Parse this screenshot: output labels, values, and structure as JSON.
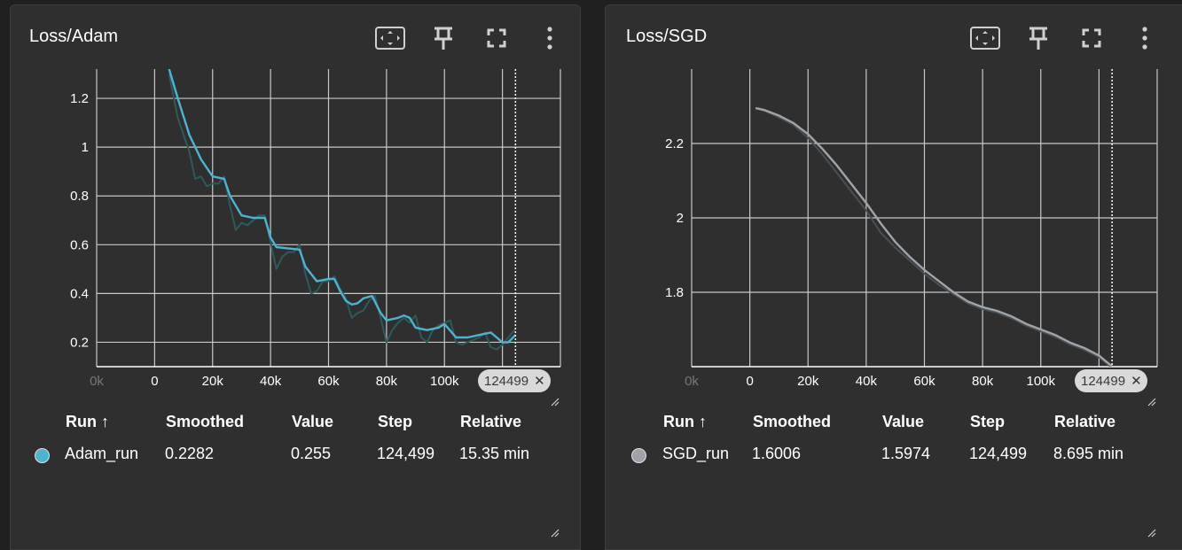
{
  "colors": {
    "adam_series": "#4fb2cf",
    "adam_raw": "#2e5a5c",
    "sgd_series": "#a0a4aa",
    "sgd_raw": "#4a5052",
    "grid": "#c8c8c8",
    "card_bg": "#2f2f2f"
  },
  "icons": [
    "fit-domain-icon",
    "pin-icon",
    "fullscreen-icon",
    "more-vert-icon"
  ],
  "panels": [
    {
      "title": "Loss/Adam",
      "step_chip": "124499",
      "legend": {
        "headers": {
          "run": "Run ↑",
          "smoothed": "Smoothed",
          "value": "Value",
          "step": "Step",
          "relative": "Relative"
        },
        "row": {
          "run": "Adam_run",
          "smoothed": "0.2282",
          "value": "0.255",
          "step": "124,499",
          "relative": "15.35 min"
        }
      }
    },
    {
      "title": "Loss/SGD",
      "step_chip": "124499",
      "legend": {
        "headers": {
          "run": "Run ↑",
          "smoothed": "Smoothed",
          "value": "Value",
          "step": "Step",
          "relative": "Relative"
        },
        "row": {
          "run": "SGD_run",
          "smoothed": "1.6006",
          "value": "1.5974",
          "step": "124,499",
          "relative": "8.695 min"
        }
      }
    }
  ],
  "chart_data": [
    {
      "type": "line",
      "title": "Loss/Adam",
      "xlabel": "",
      "ylabel": "",
      "x_ticks": [
        "0",
        "20k",
        "40k",
        "60k",
        "80k",
        "100k"
      ],
      "y_ticks": [
        "0.2",
        "0.4",
        "0.6",
        "0.8",
        "1",
        "1.2"
      ],
      "xlim": [
        -20000,
        140000
      ],
      "ylim": [
        0.1,
        1.32
      ],
      "grid": true,
      "cursor_step": 124499,
      "series": [
        {
          "name": "Adam_run",
          "x": [
            5000,
            8000,
            12000,
            16000,
            20000,
            24000,
            26000,
            30000,
            34000,
            38000,
            40000,
            42000,
            46000,
            50000,
            52000,
            56000,
            60000,
            62000,
            64000,
            66000,
            68000,
            70000,
            72000,
            75000,
            78000,
            80000,
            84000,
            86000,
            88000,
            90000,
            94000,
            98000,
            100000,
            104000,
            106000,
            108000,
            112000,
            116000,
            120000,
            122000,
            124499
          ],
          "y": [
            1.32,
            1.2,
            1.05,
            0.95,
            0.88,
            0.87,
            0.8,
            0.72,
            0.71,
            0.71,
            0.63,
            0.59,
            0.585,
            0.58,
            0.51,
            0.45,
            0.46,
            0.46,
            0.41,
            0.37,
            0.355,
            0.36,
            0.38,
            0.39,
            0.32,
            0.29,
            0.3,
            0.31,
            0.3,
            0.26,
            0.25,
            0.26,
            0.275,
            0.22,
            0.22,
            0.22,
            0.23,
            0.24,
            0.2,
            0.2,
            0.23
          ]
        },
        {
          "name": "Adam_run (raw)",
          "x": [
            5000,
            8000,
            12000,
            14000,
            16000,
            18000,
            20000,
            22000,
            24000,
            26000,
            28000,
            30000,
            32000,
            34000,
            36000,
            38000,
            40000,
            42000,
            44000,
            46000,
            48000,
            50000,
            52000,
            54000,
            56000,
            58000,
            60000,
            62000,
            64000,
            66000,
            68000,
            70000,
            72000,
            74000,
            76000,
            78000,
            80000,
            82000,
            84000,
            86000,
            88000,
            90000,
            92000,
            94000,
            96000,
            98000,
            100000,
            102000,
            104000,
            106000,
            108000,
            110000,
            112000,
            114000,
            116000,
            118000,
            120000,
            122000,
            124499
          ],
          "y": [
            1.3,
            1.12,
            0.98,
            0.87,
            0.88,
            0.84,
            0.85,
            0.85,
            0.88,
            0.76,
            0.66,
            0.69,
            0.68,
            0.7,
            0.72,
            0.72,
            0.61,
            0.5,
            0.55,
            0.57,
            0.57,
            0.6,
            0.48,
            0.4,
            0.41,
            0.45,
            0.45,
            0.47,
            0.42,
            0.38,
            0.3,
            0.32,
            0.33,
            0.37,
            0.39,
            0.3,
            0.2,
            0.25,
            0.28,
            0.3,
            0.28,
            0.31,
            0.22,
            0.2,
            0.25,
            0.27,
            0.28,
            0.29,
            0.2,
            0.19,
            0.2,
            0.21,
            0.22,
            0.24,
            0.18,
            0.17,
            0.19,
            0.22,
            0.255
          ]
        }
      ]
    },
    {
      "type": "line",
      "title": "Loss/SGD",
      "xlabel": "",
      "ylabel": "",
      "x_ticks": [
        "0",
        "20k",
        "40k",
        "60k",
        "80k",
        "100k"
      ],
      "y_ticks": [
        "1.8",
        "2",
        "2.2"
      ],
      "xlim": [
        -20000,
        140000
      ],
      "ylim": [
        1.6,
        2.4
      ],
      "grid": true,
      "cursor_step": 124499,
      "series": [
        {
          "name": "SGD_run",
          "x": [
            2000,
            5000,
            10000,
            15000,
            20000,
            25000,
            30000,
            35000,
            40000,
            45000,
            50000,
            55000,
            60000,
            65000,
            70000,
            75000,
            80000,
            85000,
            90000,
            95000,
            100000,
            105000,
            110000,
            115000,
            120000,
            124499
          ],
          "y": [
            2.295,
            2.29,
            2.275,
            2.255,
            2.225,
            2.185,
            2.14,
            2.09,
            2.04,
            1.985,
            1.935,
            1.895,
            1.86,
            1.83,
            1.8,
            1.775,
            1.76,
            1.75,
            1.735,
            1.715,
            1.7,
            1.685,
            1.665,
            1.65,
            1.63,
            1.6006
          ]
        },
        {
          "name": "SGD_run (raw)",
          "x": [
            2000,
            5000,
            10000,
            15000,
            20000,
            25000,
            30000,
            35000,
            40000,
            45000,
            50000,
            55000,
            60000,
            65000,
            70000,
            75000,
            80000,
            85000,
            90000,
            95000,
            100000,
            105000,
            110000,
            115000,
            120000,
            124499
          ],
          "y": [
            2.295,
            2.288,
            2.27,
            2.25,
            2.215,
            2.17,
            2.12,
            2.07,
            2.02,
            1.96,
            1.92,
            1.885,
            1.85,
            1.82,
            1.795,
            1.77,
            1.755,
            1.745,
            1.73,
            1.71,
            1.695,
            1.68,
            1.66,
            1.645,
            1.625,
            1.5974
          ]
        }
      ]
    }
  ]
}
